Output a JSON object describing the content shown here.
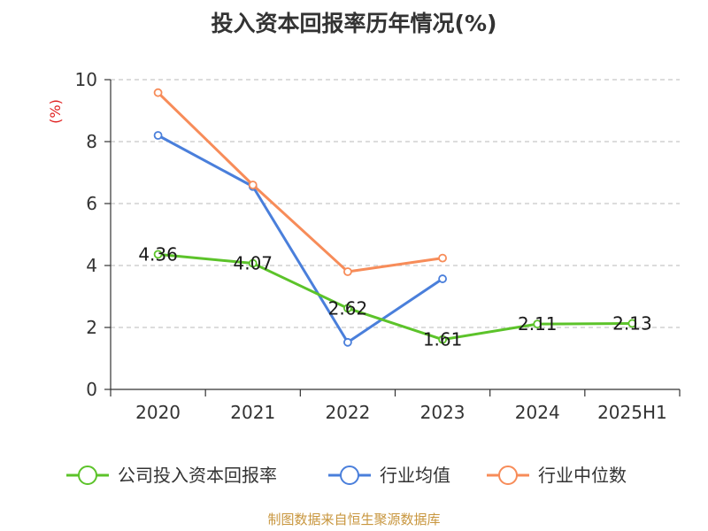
{
  "chart_data": {
    "type": "line",
    "title": "投入资本回报率历年情况(%)",
    "ylabel": "(%)",
    "categories": [
      "2020",
      "2021",
      "2022",
      "2023",
      "2024",
      "2025H1"
    ],
    "ylim": [
      0,
      10
    ],
    "yticks": [
      0,
      2,
      4,
      6,
      8,
      10
    ],
    "grid": true,
    "legend_position": "bottom",
    "series": [
      {
        "name": "公司投入资本回报率",
        "color": "#5cc32a",
        "values": [
          4.36,
          4.07,
          2.62,
          1.61,
          2.11,
          2.13
        ],
        "labels": [
          "4.36",
          "4.07",
          "2.62",
          "1.61",
          "2.11",
          "2.13"
        ]
      },
      {
        "name": "行业均值",
        "color": "#4a7fdb",
        "values": [
          8.2,
          6.55,
          1.52,
          3.57,
          null,
          null
        ]
      },
      {
        "name": "行业中位数",
        "color": "#f78c59",
        "values": [
          9.58,
          6.6,
          3.8,
          4.24,
          null,
          null
        ]
      }
    ]
  },
  "source": "制图数据来自恒生聚源数据库"
}
